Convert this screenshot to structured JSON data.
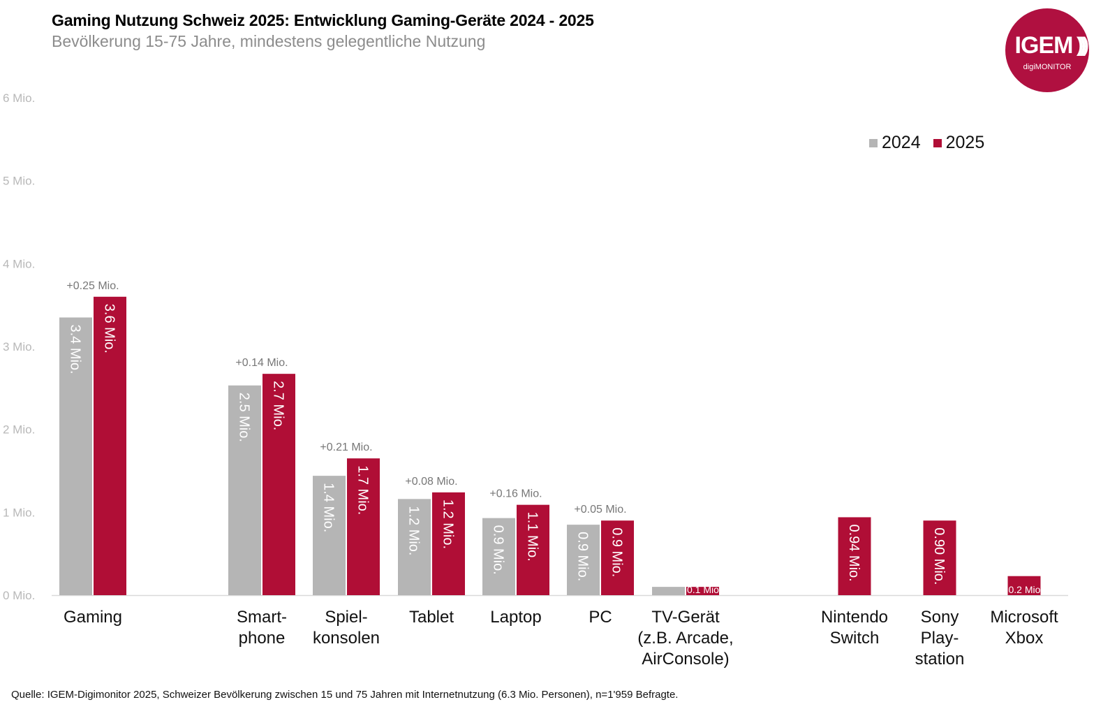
{
  "header": {
    "title": "Gaming Nutzung Schweiz 2025: Entwicklung Gaming-Geräte 2024 - 2025",
    "subtitle": "Bevölkerung 15-75 Jahre, mindestens gelegentliche Nutzung"
  },
  "logo": {
    "brand": "IGEM",
    "sub": "digiMONITOR",
    "waves": ")))",
    "color": "#b01040"
  },
  "legend": {
    "items": [
      {
        "label": "2024",
        "color": "#b5b5b5"
      },
      {
        "label": "2025",
        "color": "#b00e36"
      }
    ]
  },
  "footnote": "Quelle: IGEM-Digimonitor 2025, Schweizer Bevölkerung zwischen 15 und 75 Jahren mit Internetnutzung (6.3 Mio. Personen), n=1'959 Befragte.",
  "chart_data": {
    "type": "bar",
    "title": "Gaming Nutzung Schweiz 2025: Entwicklung Gaming-Geräte 2024 - 2025",
    "subtitle": "Bevölkerung 15-75 Jahre, mindestens gelegentliche Nutzung",
    "xlabel": "",
    "ylabel": "",
    "ylim": [
      0,
      6
    ],
    "yticks": [
      0,
      1,
      2,
      3,
      4,
      5,
      6
    ],
    "ytick_labels": [
      "0 Mio.",
      "1 Mio.",
      "2 Mio.",
      "3 Mio.",
      "4 Mio.",
      "5 Mio.",
      "6 Mio."
    ],
    "grid": false,
    "legend_position": "top-right",
    "categories": [
      [
        "Gaming"
      ],
      [
        "Smart-",
        "phone"
      ],
      [
        "Spiel-",
        "konsolen"
      ],
      [
        "Tablet"
      ],
      [
        "Laptop"
      ],
      [
        "PC"
      ],
      [
        "TV-Gerät",
        "(z.B. Arcade,",
        "AirConsole)"
      ],
      [
        "Nintendo",
        "Switch"
      ],
      [
        "Sony",
        "Play-",
        "station"
      ],
      [
        "Microsoft",
        "Xbox"
      ]
    ],
    "series": [
      {
        "name": "2024",
        "color": "#b5b5b5",
        "values": [
          3.35,
          2.53,
          1.44,
          1.16,
          0.93,
          0.85,
          0.1,
          null,
          null,
          null
        ],
        "labels": [
          "3.4 Mio.",
          "2.5 Mio.",
          "1.4 Mio.",
          "1.2 Mio.",
          "0.9 Mio.",
          "0.9 Mio.",
          "",
          null,
          null,
          null
        ]
      },
      {
        "name": "2025",
        "color": "#b00e36",
        "values": [
          3.6,
          2.67,
          1.65,
          1.24,
          1.09,
          0.9,
          0.1,
          0.94,
          0.9,
          0.23
        ],
        "labels": [
          "3.6 Mio.",
          "2.7 Mio.",
          "1.7 Mio.",
          "1.2 Mio.",
          "1.1 Mio.",
          "0.9 Mio.",
          "0.1 Mio",
          "0.94 Mio.",
          "0.90 Mio.",
          "0.2 Mio"
        ]
      }
    ],
    "annotations": [
      "+0.25 Mio.",
      "+0.14 Mio.",
      "+0.21 Mio.",
      "+0.08 Mio.",
      "+0.16 Mio.",
      "+0.05 Mio.",
      null,
      null,
      null,
      null
    ]
  }
}
